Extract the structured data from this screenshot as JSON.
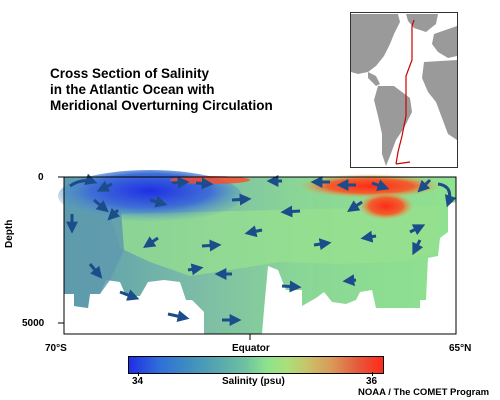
{
  "title": {
    "line1": "Cross Section of Salinity",
    "line2": "in the Atlantic Ocean with",
    "line3": "Meridional Overturning Circulation"
  },
  "axes": {
    "y_label": "Depth",
    "y_ticks": [
      "0",
      "5000"
    ],
    "x_ticks": [
      "70°S",
      "Equator",
      "65°N"
    ]
  },
  "colorbar": {
    "label": "Salinity (psu)",
    "min_label": "34",
    "max_label": "36",
    "colors": [
      "#1f2fe6",
      "#3f8fbf",
      "#6fc2a0",
      "#8de28f",
      "#c8c46a",
      "#e55a3c",
      "#ff2a1a"
    ]
  },
  "credit": "NOAA / The COMET Program",
  "colors": {
    "arrow": "#1d4c8a",
    "land": "#9a9a9a",
    "transect_line": "#cc0000",
    "high_salinity": "#ff2a1a",
    "low_salinity": "#1f2fe6"
  }
}
